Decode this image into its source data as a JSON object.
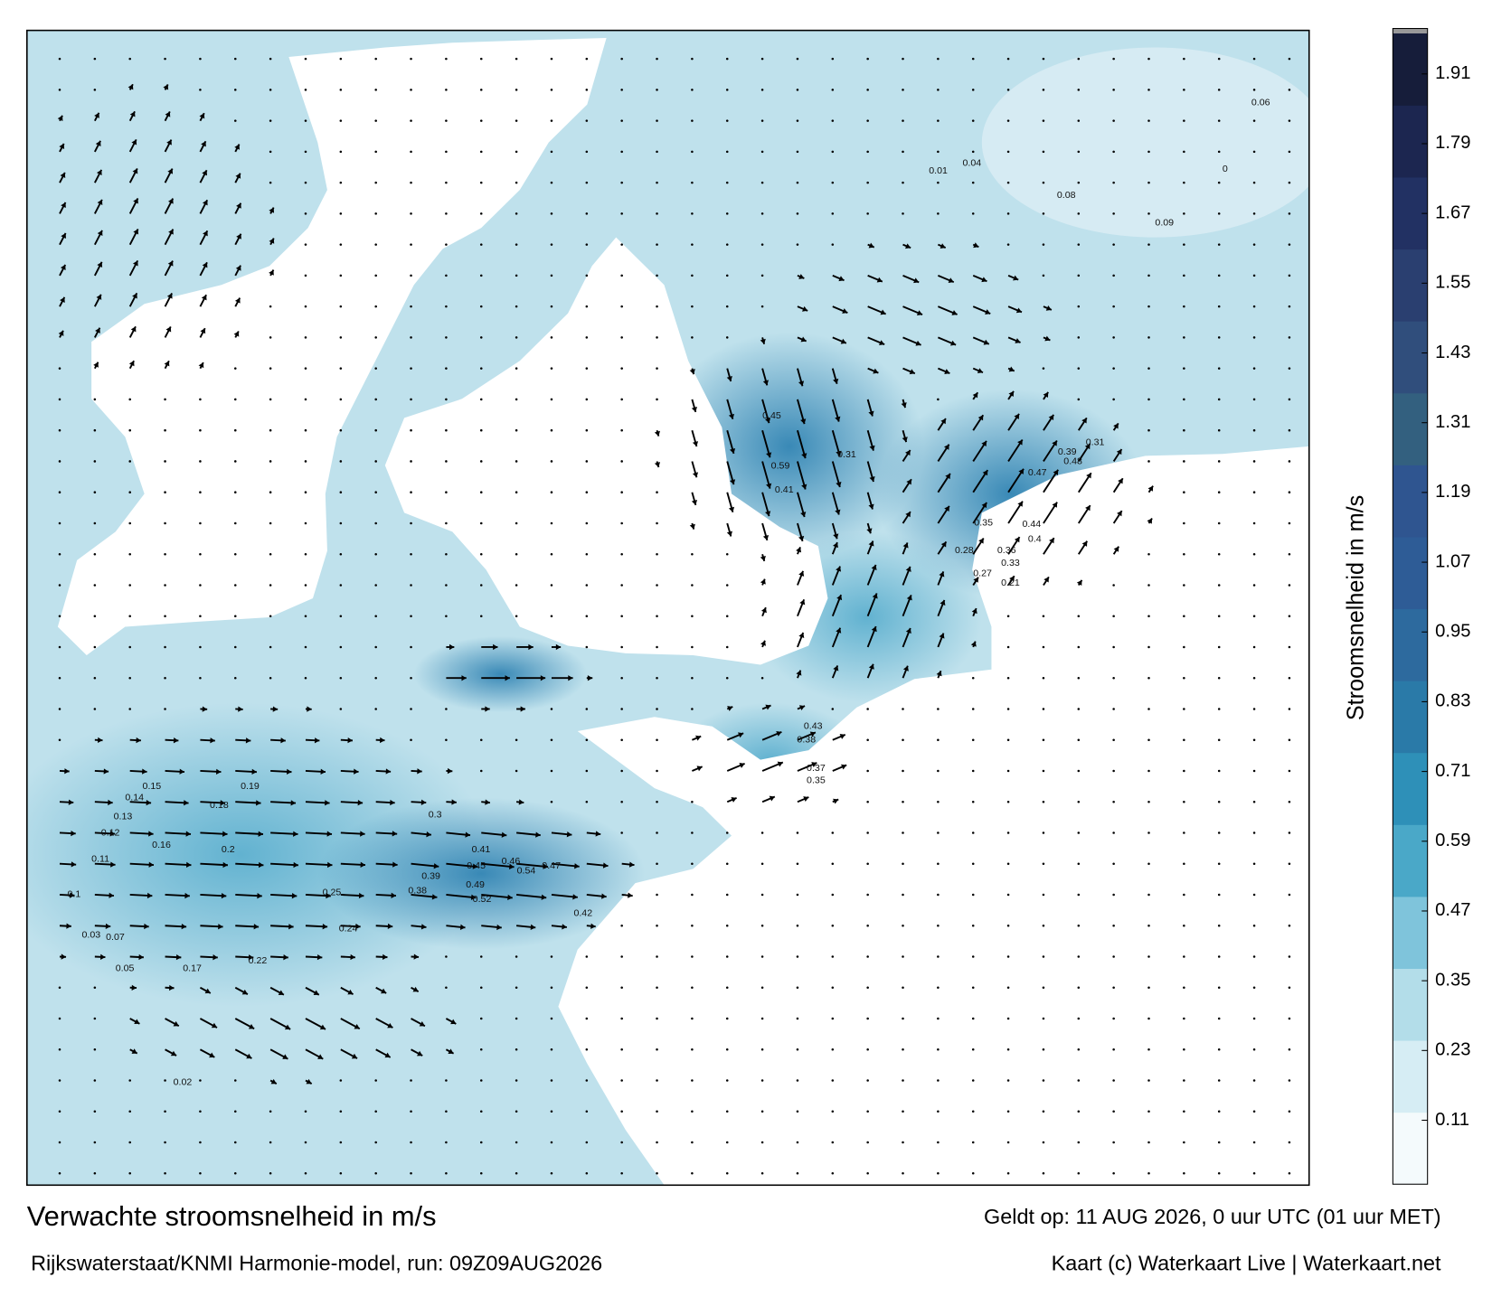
{
  "chart_data": {
    "type": "current-map",
    "title": "Verwachte stroomsnelheid in m/s",
    "subtitle": "Rijkswaterstaat/KNMI Harmonie-model, run: 09Z09AUG2026",
    "valid_time": "Geldt op: 11 AUG 2026, 0 uur UTC (01 uur MET)",
    "credit": "Kaart (c) Waterkaart Live | Waterkaart.net",
    "colorbar_label": "Stroomsnelheid in m/s",
    "clim": [
      0,
      1.98
    ],
    "cticks": [
      0.11,
      0.23,
      0.35,
      0.47,
      0.59,
      0.71,
      0.83,
      0.95,
      1.07,
      1.19,
      1.31,
      1.43,
      1.55,
      1.67,
      1.79,
      1.91
    ],
    "colormap": [
      "#f4fafc",
      "#d6edf4",
      "#b3dde9",
      "#7fc4db",
      "#4aa8c8",
      "#2e90b8",
      "#2a7aa8",
      "#2d6a9e",
      "#2e5c96",
      "#2f5590",
      "#33607f",
      "#304e7c",
      "#2a3f70",
      "#223163",
      "#1c2650",
      "#161d3a"
    ],
    "map_labels": [
      "0.1",
      "0.11",
      "0.12",
      "0.14",
      "0.15",
      "0.13",
      "0.05",
      "0.03",
      "0.07",
      "0.17",
      "0.2",
      "0.19",
      "0.18",
      "0.16",
      "0.22",
      "0.25",
      "0.24",
      "0.3",
      "0.41",
      "0.45",
      "0.46",
      "0.47",
      "0.54",
      "0.49",
      "0.52",
      "0.42",
      "0.38",
      "0.39",
      "0.45",
      "0.59",
      "0.41",
      "0.31",
      "0.28",
      "0.35",
      "0.44",
      "0.4",
      "0.36",
      "0.33",
      "0.27",
      "0.21",
      "0.31",
      "0.39",
      "0.48",
      "0.47",
      "0.43",
      "0.38",
      "0.37",
      "0.35",
      "0.02",
      "0.04",
      "0.06",
      "0.08",
      "0.09",
      "0.01",
      "0"
    ]
  }
}
